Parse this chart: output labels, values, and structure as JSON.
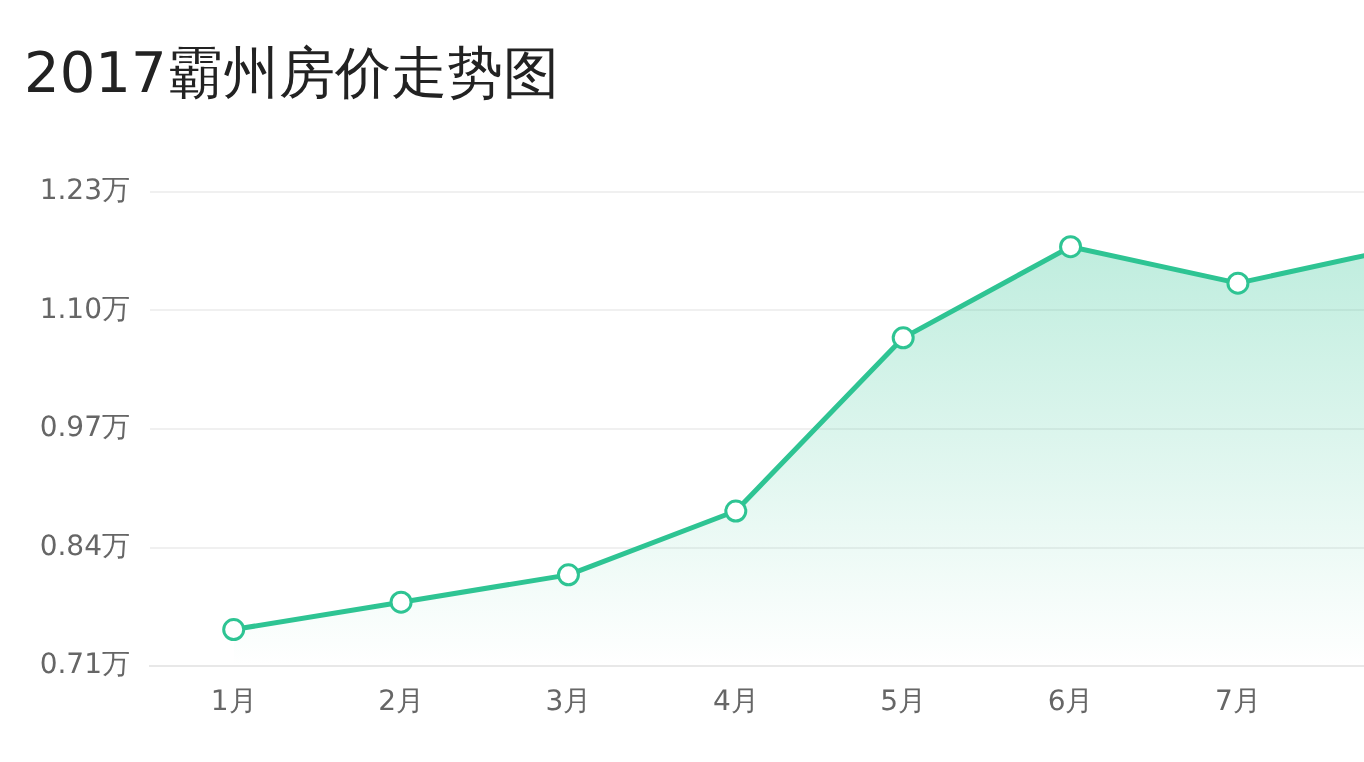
{
  "chart_data": {
    "type": "area",
    "title": "2017霸州房价走势图",
    "categories": [
      "1月",
      "2月",
      "3月",
      "4月",
      "5月",
      "6月",
      "7月",
      null
    ],
    "series": [
      {
        "color": "#2ec493",
        "values": [
          0.75,
          0.78,
          0.81,
          0.88,
          1.07,
          1.17,
          1.13,
          1.17
        ]
      }
    ],
    "ylim": [
      0.71,
      1.23
    ],
    "yticks": [
      {
        "value": 0.71,
        "label": "0.71万"
      },
      {
        "value": 0.84,
        "label": "0.84万"
      },
      {
        "value": 0.97,
        "label": "0.97万"
      },
      {
        "value": 1.1,
        "label": "1.10万"
      },
      {
        "value": 1.23,
        "label": "1.23万"
      }
    ],
    "grid": "y",
    "legend": false,
    "marker": "circle",
    "line_style": "solid"
  }
}
